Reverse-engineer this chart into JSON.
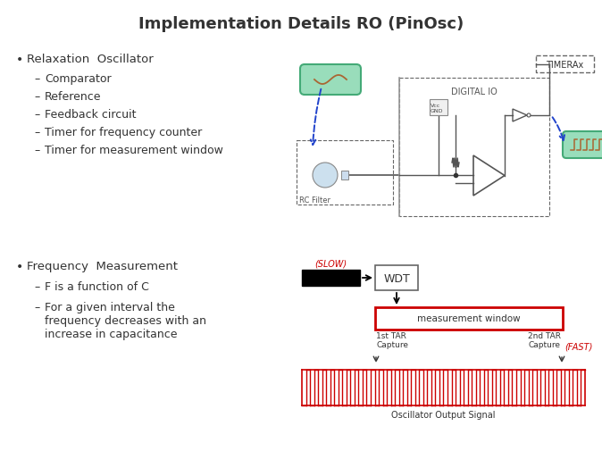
{
  "title": "Implementation Details RO (PinOsc)",
  "title_fontsize": 13,
  "background_color": "#ffffff",
  "bullet1": "Relaxation  Oscillator",
  "sub1_1": "Comparator",
  "sub1_2": "Reference",
  "sub1_3": "Feedback circuit",
  "sub1_4": "Timer for frequency counter",
  "sub1_5": "Timer for measurement window",
  "bullet2": "Frequency  Measurement",
  "sub2_1": "F is a function of C",
  "sub2_2": "For a given interval the\nfrequency decreases with an\nincrease in capacitance",
  "text_color": "#333333",
  "red_color": "#cc0000",
  "blue_color": "#2244cc",
  "gray_color": "#666666",
  "light_gray": "#aaaaaa",
  "green_fill": "#99ddbb",
  "green_edge": "#44aa77",
  "brown_wave": "#aa6633"
}
